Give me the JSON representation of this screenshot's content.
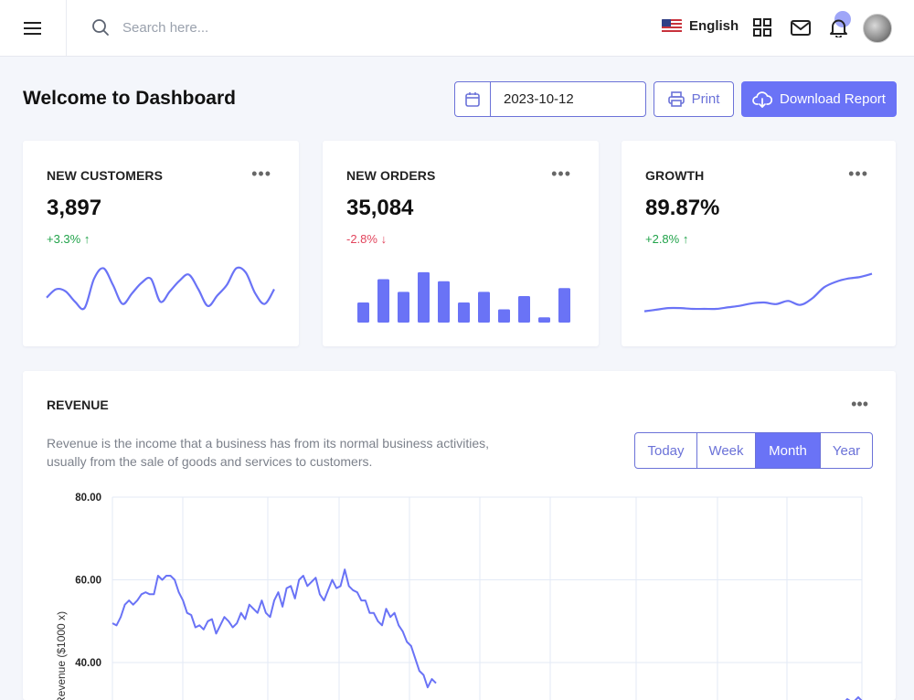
{
  "header": {
    "search_placeholder": "Search here...",
    "language": "English",
    "icons": [
      "menu-icon",
      "search-icon",
      "us-flag-icon",
      "grid-icon",
      "mail-icon",
      "bell-icon"
    ]
  },
  "page": {
    "title": "Welcome to Dashboard",
    "date": "2023-10-12",
    "print_label": "Print",
    "download_label": "Download Report"
  },
  "colors": {
    "accent": "#6a73f6",
    "up": "#21a34a",
    "down": "#e2445c"
  },
  "stats": [
    {
      "label": "NEW CUSTOMERS",
      "value": "3,897",
      "change": "+3.3%",
      "direction": "up"
    },
    {
      "label": "NEW ORDERS",
      "value": "35,084",
      "change": "-2.8%",
      "direction": "down"
    },
    {
      "label": "GROWTH",
      "value": "89.87%",
      "change": "+2.8%",
      "direction": "up"
    }
  ],
  "revenue": {
    "title": "REVENUE",
    "description_line1": "Revenue is the income that a business has from its normal business activities,",
    "description_line2": "usually from the sale of goods and services to customers.",
    "periods": [
      "Today",
      "Week",
      "Month",
      "Year"
    ],
    "active_period": "Month"
  },
  "chart_data": [
    {
      "type": "line",
      "title": "",
      "series": [
        {
          "values": [
            46,
            50,
            49,
            44,
            41,
            55,
            60,
            52,
            43,
            48,
            53,
            55,
            44,
            49,
            54,
            57,
            50,
            42,
            47,
            52,
            60,
            58,
            48,
            43,
            50
          ]
        }
      ]
    },
    {
      "type": "bar",
      "title": "",
      "series": [
        {
          "values": [
            38,
            82,
            58,
            95,
            78,
            38,
            58,
            25,
            50,
            10,
            65
          ]
        }
      ]
    },
    {
      "type": "line",
      "title": "",
      "series": [
        {
          "values": [
            5,
            7,
            9,
            9,
            8,
            8,
            8,
            10,
            12,
            15,
            16,
            14,
            18,
            13,
            21,
            35,
            42,
            46,
            48,
            52
          ]
        }
      ]
    },
    {
      "type": "line",
      "title": "",
      "ylabel": "Revenue ($1000 x)",
      "yticks": [
        "80.00",
        "60.00",
        "40.00"
      ],
      "ylim": [
        36,
        80
      ],
      "grid": true,
      "series": [
        {
          "values": [
            49.5,
            49,
            51,
            54,
            55,
            54,
            55,
            56.5,
            57,
            56.5,
            56.5,
            61,
            60,
            61,
            61,
            60,
            57,
            55,
            52,
            51.5,
            48.5,
            49,
            48,
            50,
            50.5,
            47,
            49,
            51,
            50,
            48.5,
            49.5,
            52,
            50.5,
            54,
            53,
            52,
            55,
            52,
            51,
            55,
            57,
            53.5,
            58,
            58.5,
            55.5,
            60,
            61,
            58.5,
            59.5,
            60.5,
            56.5,
            55,
            57.5,
            60,
            58,
            58.5,
            62.5,
            58.5,
            57.5,
            57,
            55,
            55,
            52,
            52,
            50,
            49,
            53,
            51,
            52,
            49,
            47.5,
            45,
            44,
            41,
            38,
            37,
            34,
            36,
            35
          ]
        }
      ]
    }
  ]
}
